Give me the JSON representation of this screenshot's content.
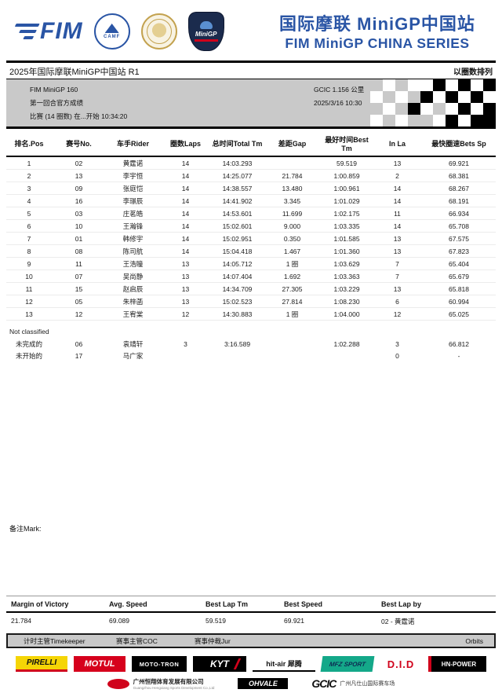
{
  "header": {
    "logos": {
      "fim": "FIM",
      "camf": "CAMF",
      "minigp": "MiniGP"
    },
    "title_cn": "国际摩联 MiniGP中国站",
    "title_en": "FIM MiniGP CHINA SERIES"
  },
  "event": {
    "title": "2025年国际摩联MiniGP中国站  R1",
    "sort_note": "以圈数排列",
    "class_name": "FIM MiniGP 160",
    "session": "第一回合官方成绩",
    "race_info": "比赛 (14 圈数) 在...开始 10:34:20",
    "track": "GCIC 1.156 公里",
    "datetime": "2025/3/16 10:30"
  },
  "results": {
    "columns": [
      "排名.Pos",
      "赛号No.",
      "车手Rider",
      "圈数Laps",
      "总时间Total Tm",
      "差距Gap",
      "最好时间Best Tm",
      "In La",
      "最快圈速Bets Sp"
    ],
    "classified": [
      [
        "1",
        "02",
        "黄霆诺",
        "14",
        "14:03.293",
        "",
        "59.519",
        "13",
        "69.921"
      ],
      [
        "2",
        "13",
        "李宇恒",
        "14",
        "14:25.077",
        "21.784",
        "1:00.859",
        "2",
        "68.381"
      ],
      [
        "3",
        "09",
        "张庭恺",
        "14",
        "14:38.557",
        "13.480",
        "1:00.961",
        "14",
        "68.267"
      ],
      [
        "4",
        "16",
        "李璟辰",
        "14",
        "14:41.902",
        "3.345",
        "1:01.029",
        "14",
        "68.191"
      ],
      [
        "5",
        "03",
        "庄茗皓",
        "14",
        "14:53.601",
        "11.699",
        "1:02.175",
        "11",
        "66.934"
      ],
      [
        "6",
        "10",
        "王瀚锋",
        "14",
        "15:02.601",
        "9.000",
        "1:03.335",
        "14",
        "65.708"
      ],
      [
        "7",
        "01",
        "韩修宇",
        "14",
        "15:02.951",
        "0.350",
        "1:01.585",
        "13",
        "67.575"
      ],
      [
        "8",
        "08",
        "陈司航",
        "14",
        "15:04.418",
        "1.467",
        "1:01.360",
        "13",
        "67.823"
      ],
      [
        "9",
        "11",
        "王浩瞳",
        "13",
        "14:05.712",
        "1 圈",
        "1:03.629",
        "7",
        "65.404"
      ],
      [
        "10",
        "07",
        "吴尚静",
        "13",
        "14:07.404",
        "1.692",
        "1:03.363",
        "7",
        "65.679"
      ],
      [
        "11",
        "15",
        "赵启辰",
        "13",
        "14:34.709",
        "27.305",
        "1:03.229",
        "13",
        "65.818"
      ],
      [
        "12",
        "05",
        "朱梓菡",
        "13",
        "15:02.523",
        "27.814",
        "1:08.230",
        "6",
        "60.994"
      ],
      [
        "13",
        "12",
        "王宥棠",
        "12",
        "14:30.883",
        "1 圈",
        "1:04.000",
        "12",
        "65.025"
      ]
    ],
    "not_classified_label": "Not classified",
    "not_classified": [
      [
        "未完成的",
        "06",
        "袁靖轩",
        "3",
        "3:16.589",
        "",
        "1:02.288",
        "3",
        "66.812"
      ],
      [
        "未开始的",
        "17",
        "马广家",
        "",
        "",
        "",
        "",
        "0",
        "-"
      ]
    ]
  },
  "remark_label": "备注Mark:",
  "summary": {
    "items": [
      {
        "label": "Margin of Victory",
        "value": "21.784"
      },
      {
        "label": "Avg. Speed",
        "value": "69.089"
      },
      {
        "label": "Best Lap Tm",
        "value": "59.519"
      },
      {
        "label": "Best Speed",
        "value": "69.921"
      },
      {
        "label": "Best Lap by",
        "value": "02 - 黄霆诺"
      }
    ]
  },
  "officials": {
    "timekeeper": "计时主管Timekeeper",
    "coc": "赛事主管COC",
    "jury": "赛事仲裁Jur",
    "brand": "Orbits"
  },
  "sponsors": {
    "row1": [
      {
        "name": "PIRELLI"
      },
      {
        "name": "MOTUL"
      },
      {
        "name": "MOTO-TRON"
      },
      {
        "name": "KYT"
      },
      {
        "name": "hit-air 犀腾"
      },
      {
        "name": "MFZ SPORT"
      },
      {
        "name": "D.I.D"
      },
      {
        "name": "HN-POWER"
      }
    ],
    "row2": [
      {
        "name": "广州恒翔体育发展有限公司",
        "sub": "Guangzhou Hengxiang Sports Development Co.,Ltd"
      },
      {
        "name": "OHVALE"
      },
      {
        "name": "GCIC",
        "sub": "广州凡仕山国际赛车场"
      }
    ]
  }
}
